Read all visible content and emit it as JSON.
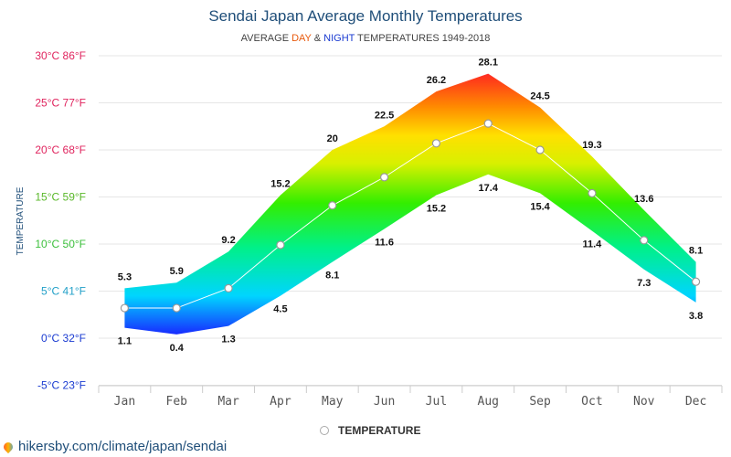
{
  "title": "Sendai Japan Average Monthly Temperatures",
  "subtitle": {
    "prefix": "AVERAGE ",
    "day": "DAY",
    "amp": " & ",
    "night": "NIGHT",
    "suffix": " TEMPERATURES 1949-2018"
  },
  "legend": {
    "label": "TEMPERATURE"
  },
  "source": "hikersby.com/climate/japan/sendai",
  "chart_data": {
    "type": "area",
    "categories": [
      "Jan",
      "Feb",
      "Mar",
      "Apr",
      "May",
      "Jun",
      "Jul",
      "Aug",
      "Sep",
      "Oct",
      "Nov",
      "Dec"
    ],
    "series": [
      {
        "name": "DAY",
        "values": [
          5.3,
          5.9,
          9.2,
          15.2,
          20,
          22.5,
          26.2,
          28.1,
          24.5,
          19.3,
          13.6,
          8.1
        ]
      },
      {
        "name": "NIGHT",
        "values": [
          1.1,
          0.4,
          1.3,
          4.5,
          8.1,
          11.6,
          15.2,
          17.4,
          15.4,
          11.4,
          7.3,
          3.8
        ]
      },
      {
        "name": "TEMPERATURE",
        "values": [
          3.2,
          3.2,
          5.3,
          9.9,
          14.1,
          17.1,
          20.7,
          22.8,
          20.0,
          15.4,
          10.4,
          6.0
        ]
      }
    ],
    "y_ticks": [
      {
        "value": -5,
        "label": "-5°C 23°F",
        "color": "#1a3bd1"
      },
      {
        "value": 0,
        "label": "0°C 32°F",
        "color": "#1a3bd1"
      },
      {
        "value": 5,
        "label": "5°C 41°F",
        "color": "#22a0c8"
      },
      {
        "value": 10,
        "label": "10°C 50°F",
        "color": "#3bbf3b"
      },
      {
        "value": 15,
        "label": "15°C 59°F",
        "color": "#5ab82a"
      },
      {
        "value": 20,
        "label": "20°C 68°F",
        "color": "#e0245e"
      },
      {
        "value": 25,
        "label": "25°C 77°F",
        "color": "#e0245e"
      },
      {
        "value": 30,
        "label": "30°C 86°F",
        "color": "#e0245e"
      }
    ],
    "ylabel": "TEMPERATURE",
    "ylim": [
      -5,
      30
    ],
    "grid": true,
    "legend_position": "bottom-center",
    "colors": {
      "grid": "#e6e6e6",
      "axis": "#cccccc",
      "label": "#111111",
      "marker_stroke": "#999999"
    }
  }
}
